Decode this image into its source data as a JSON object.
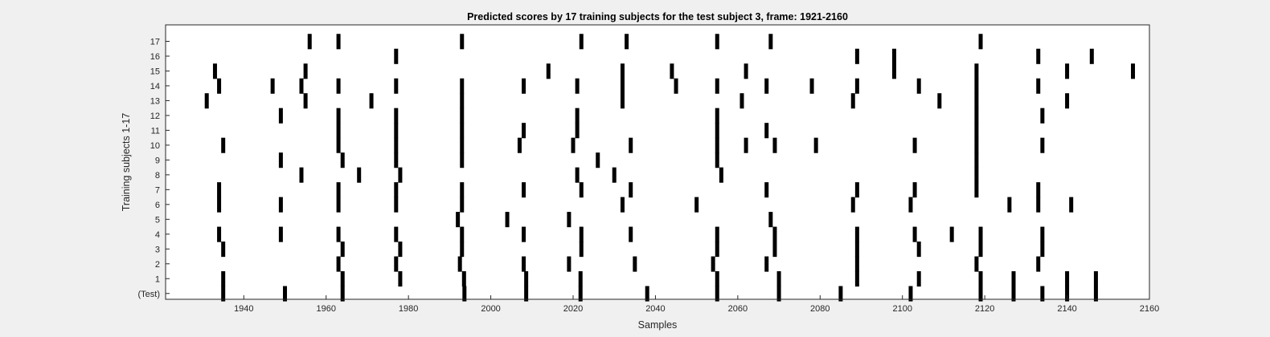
{
  "chart_data": {
    "type": "raster",
    "title": "Predicted scores by 17 training subjects for the test subject 3, frame: 1921-2160",
    "xlabel": "Samples",
    "ylabel": "Training subjects 1-17",
    "xlim": [
      1921,
      2160
    ],
    "x_ticks": [
      1940,
      1960,
      1980,
      2000,
      2020,
      2040,
      2060,
      2080,
      2100,
      2120,
      2140,
      2160
    ],
    "y_tick_labels": [
      "(Test)",
      "1",
      "2",
      "3",
      "4",
      "5",
      "6",
      "7",
      "8",
      "9",
      "10",
      "11",
      "12",
      "13",
      "14",
      "15",
      "16",
      "17"
    ],
    "grid": false,
    "mark_color": "#000000",
    "rows": [
      {
        "label": "(Test)",
        "events": [
          1935,
          1950,
          1964,
          1993.6,
          2008.6,
          2021.8,
          2038,
          2055,
          2070,
          2085,
          2102,
          2119,
          2127,
          2134,
          2140,
          2147
        ]
      },
      {
        "label": "1",
        "events": [
          1935,
          1964,
          1978,
          1993.5,
          2008.6,
          2021.8,
          2055,
          2070,
          2089,
          2104,
          2119,
          2127,
          2140,
          2147
        ]
      },
      {
        "label": "2",
        "events": [
          1963,
          1977,
          1992.5,
          2008,
          2019,
          2035,
          2054,
          2067,
          2089,
          2118,
          2133
        ]
      },
      {
        "label": "3",
        "events": [
          1935,
          1964,
          1978,
          1993,
          2022,
          2055,
          2069,
          2089,
          2104,
          2119,
          2134
        ]
      },
      {
        "label": "4",
        "events": [
          1934,
          1949,
          1963,
          1977,
          1993,
          2008,
          2022,
          2034,
          2055,
          2069,
          2089,
          2103,
          2112,
          2119,
          2134
        ]
      },
      {
        "label": "5",
        "events": [
          1992,
          2004,
          2019,
          2068
        ]
      },
      {
        "label": "6",
        "events": [
          1934,
          1949,
          1963,
          1977,
          1993,
          2032,
          2050,
          2088,
          2102,
          2126,
          2133,
          2141
        ]
      },
      {
        "label": "7",
        "events": [
          1934,
          1963,
          1977,
          1993,
          2008,
          2022,
          2034,
          2067,
          2089,
          2103,
          2118,
          2133
        ]
      },
      {
        "label": "8",
        "events": [
          1954,
          1968,
          1978,
          2021,
          2030,
          2056,
          2118
        ]
      },
      {
        "label": "9",
        "events": [
          1949,
          1964,
          1977,
          1993,
          2026,
          2055,
          2118
        ]
      },
      {
        "label": "10",
        "events": [
          1935,
          1963,
          1977,
          1993,
          2007,
          2020,
          2034,
          2055,
          2062,
          2069,
          2079,
          2103,
          2118,
          2134
        ]
      },
      {
        "label": "11",
        "events": [
          1963,
          1977,
          1993,
          2008,
          2021,
          2055,
          2067,
          2118
        ]
      },
      {
        "label": "12",
        "events": [
          1949,
          1963,
          1977,
          1993,
          2021,
          2055,
          2118,
          2134
        ]
      },
      {
        "label": "13",
        "events": [
          1931,
          1955,
          1971,
          1993,
          2032,
          2061,
          2088,
          2109,
          2118,
          2140
        ]
      },
      {
        "label": "14",
        "events": [
          1934,
          1947,
          1954,
          1963,
          1977,
          1993,
          2008,
          2021,
          2032,
          2045,
          2055,
          2067,
          2078,
          2089,
          2104,
          2118,
          2133
        ]
      },
      {
        "label": "15",
        "events": [
          1933,
          1955,
          2014,
          2032,
          2044,
          2062,
          2098,
          2118,
          2140,
          2156
        ]
      },
      {
        "label": "16",
        "events": [
          1977,
          2089,
          2098,
          2133,
          2146
        ]
      },
      {
        "label": "17",
        "events": [
          1956,
          1963,
          1993,
          2022,
          2033,
          2055,
          2068,
          2119
        ]
      }
    ]
  }
}
